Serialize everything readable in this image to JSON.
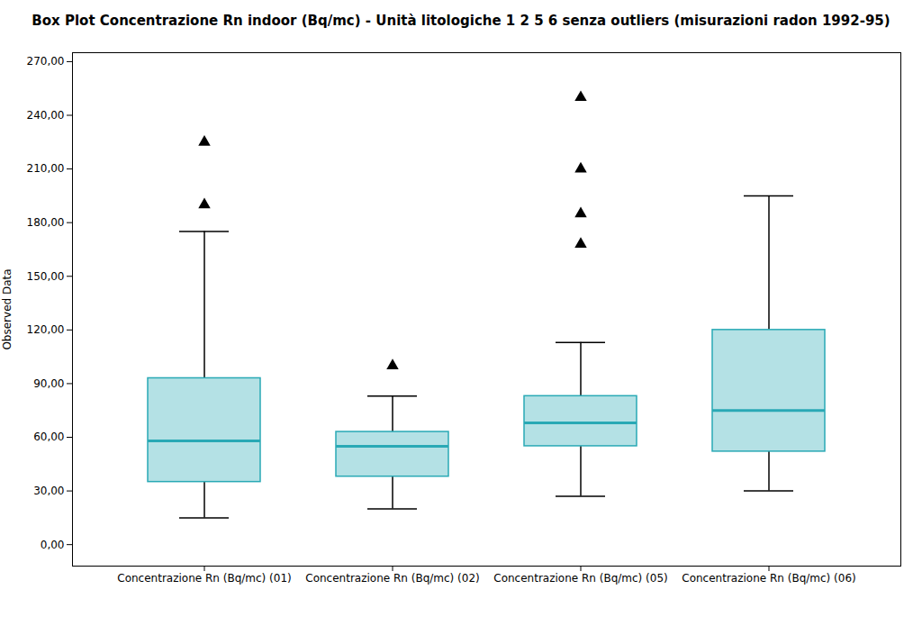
{
  "chart_data": {
    "type": "box",
    "title": "Box Plot Concentrazione Rn indoor (Bq/mc) - Unità litologiche  1 2 5 6 senza outliers (misurazioni radon 1992-95)",
    "ylabel": "Observed Data",
    "categories": [
      "Concentrazione Rn (Bq/mc) (01)",
      "Concentrazione Rn (Bq/mc) (02)",
      "Concentrazione Rn (Bq/mc) (05)",
      "Concentrazione Rn (Bq/mc) (06)"
    ],
    "boxes": [
      {
        "whisker_low": 15,
        "q1": 35,
        "median": 58,
        "q3": 93,
        "whisker_high": 175,
        "outliers": [
          190,
          225
        ]
      },
      {
        "whisker_low": 20,
        "q1": 38,
        "median": 55,
        "q3": 63,
        "whisker_high": 83,
        "outliers": [
          100
        ]
      },
      {
        "whisker_low": 27,
        "q1": 55,
        "median": 68,
        "q3": 83,
        "whisker_high": 113,
        "outliers": [
          168,
          185,
          210,
          250
        ]
      },
      {
        "whisker_low": 30,
        "q1": 52,
        "median": 75,
        "q3": 120,
        "whisker_high": 195,
        "outliers": []
      }
    ],
    "ylim": [
      -12,
      275
    ],
    "yticks": [
      {
        "value": 0,
        "label": "0,00"
      },
      {
        "value": 30,
        "label": "30,00"
      },
      {
        "value": 60,
        "label": "60,00"
      },
      {
        "value": 90,
        "label": "90,00"
      },
      {
        "value": 120,
        "label": "120,00"
      },
      {
        "value": 150,
        "label": "150,00"
      },
      {
        "value": 180,
        "label": "180,00"
      },
      {
        "value": 210,
        "label": "210,00"
      },
      {
        "value": 240,
        "label": "240,00"
      },
      {
        "value": 270,
        "label": "270,00"
      }
    ],
    "color": "#29A9B5",
    "marker": "triangle",
    "grid": false
  }
}
